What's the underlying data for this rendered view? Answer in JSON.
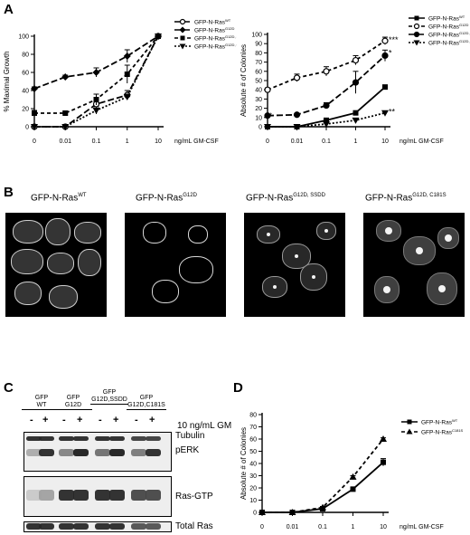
{
  "panels": {
    "A": "A",
    "B": "B",
    "C": "C",
    "D": "D"
  },
  "chart_data": [
    {
      "type": "line",
      "panel": "A-left",
      "ylabel": "% Maximal Growth",
      "xlabel": "ng/mL GM-CSF",
      "categories": [
        "0",
        "0.01",
        "0.1",
        "1",
        "10"
      ],
      "ylim": [
        0,
        100
      ],
      "yticks": [
        "0",
        "20",
        "40",
        "60",
        "80",
        "100"
      ],
      "legend_position": "right",
      "series": [
        {
          "name": "GFP-N-Ras",
          "sup": "WT",
          "marker": "circle-open",
          "dash": "long",
          "values": [
            0,
            0,
            25,
            35,
            100
          ],
          "err": [
            0,
            0,
            6,
            5,
            0
          ]
        },
        {
          "name": "GFP-N-Ras",
          "sup": "G12D",
          "marker": "diamond",
          "dash": "long",
          "values": [
            42,
            55,
            60,
            78,
            100
          ],
          "err": [
            2,
            2,
            5,
            7,
            0
          ]
        },
        {
          "name": "GFP-N-Ras",
          "sup": "G12D, SSDD",
          "marker": "square",
          "dash": "medium",
          "values": [
            15,
            15,
            30,
            58,
            100
          ],
          "err": [
            3,
            2,
            6,
            10,
            0
          ]
        },
        {
          "name": "GFP-N-Ras",
          "sup": "G12D, C181S",
          "marker": "triangle-down",
          "dash": "dot",
          "values": [
            0,
            0,
            18,
            33,
            100
          ],
          "err": [
            0,
            0,
            4,
            3,
            0
          ]
        }
      ]
    },
    {
      "type": "line",
      "panel": "A-right",
      "ylabel": "Absolute # of Colonies",
      "xlabel": "ng/mL GM-CSF",
      "categories": [
        "0",
        "0.01",
        "0.1",
        "1",
        "10"
      ],
      "ylim": [
        0,
        100
      ],
      "yticks": [
        "0",
        "10",
        "20",
        "30",
        "40",
        "50",
        "60",
        "70",
        "80",
        "90",
        "100"
      ],
      "legend_position": "top-right",
      "annotations": [
        "**",
        "***",
        "*",
        "**"
      ],
      "series": [
        {
          "name": "GFP-N-Ras",
          "sup": "WT",
          "marker": "square",
          "dash": "solid",
          "values": [
            0,
            0,
            7,
            15,
            43
          ],
          "err": [
            0,
            0,
            1,
            2,
            2
          ]
        },
        {
          "name": "GFP-N-Ras",
          "sup": "G12D",
          "marker": "circle-open",
          "dash": "medium",
          "values": [
            40,
            53,
            60,
            72,
            93
          ],
          "err": [
            2,
            4,
            5,
            5,
            4
          ]
        },
        {
          "name": "GFP-N-Ras",
          "sup": "G12D, SSDD",
          "marker": "circle",
          "dash": "long",
          "values": [
            12,
            13,
            23,
            48,
            77
          ],
          "err": [
            1,
            1,
            3,
            12,
            6
          ]
        },
        {
          "name": "GFP-N-Ras",
          "sup": "G12D, C181S",
          "marker": "triangle-down",
          "dash": "dot",
          "values": [
            0,
            0,
            3,
            7,
            15
          ],
          "err": [
            0,
            0,
            1,
            1,
            2
          ]
        }
      ]
    },
    {
      "type": "line",
      "panel": "D",
      "ylabel": "Absolute # of Colonies",
      "xlabel": "ng/mL GM-CSF",
      "categories": [
        "0",
        "0.01",
        "0.1",
        "1",
        "10"
      ],
      "ylim": [
        0,
        80
      ],
      "yticks": [
        "0",
        "10",
        "20",
        "30",
        "40",
        "50",
        "60",
        "70",
        "80"
      ],
      "legend_position": "right",
      "series": [
        {
          "name": "GFP-N-Ras",
          "sup": "WT",
          "marker": "square",
          "dash": "solid",
          "values": [
            0,
            0,
            3,
            19,
            41
          ],
          "err": [
            0,
            0,
            0.5,
            1,
            3
          ]
        },
        {
          "name": "GFP-N-Ras",
          "sup": "C181S",
          "marker": "triangle-up",
          "dash": "medium",
          "values": [
            0,
            0,
            4,
            29,
            60
          ],
          "err": [
            0,
            0,
            0.5,
            1,
            1
          ]
        }
      ]
    }
  ],
  "micrographs": [
    {
      "label": "GFP-N-Ras",
      "sup": "WT"
    },
    {
      "label": "GFP-N-Ras",
      "sup": "G12D"
    },
    {
      "label": "GFP-N-Ras",
      "sup": "G12D, SSDD"
    },
    {
      "label": "GFP-N-Ras",
      "sup": "G12D, C181S"
    }
  ],
  "western": {
    "groups": [
      {
        "lines": [
          "GFP",
          "WT"
        ]
      },
      {
        "lines": [
          "GFP",
          "G12D"
        ]
      },
      {
        "lines": [
          "GFP",
          "G12D,SSDD"
        ]
      },
      {
        "lines": [
          "GFP",
          "G12D,C181S"
        ]
      }
    ],
    "minus": "-",
    "plus": "+",
    "treatment": "10 ng/mL GM",
    "blots": [
      "Tubulin",
      "pERK",
      "Ras-GTP",
      "Total Ras"
    ]
  }
}
